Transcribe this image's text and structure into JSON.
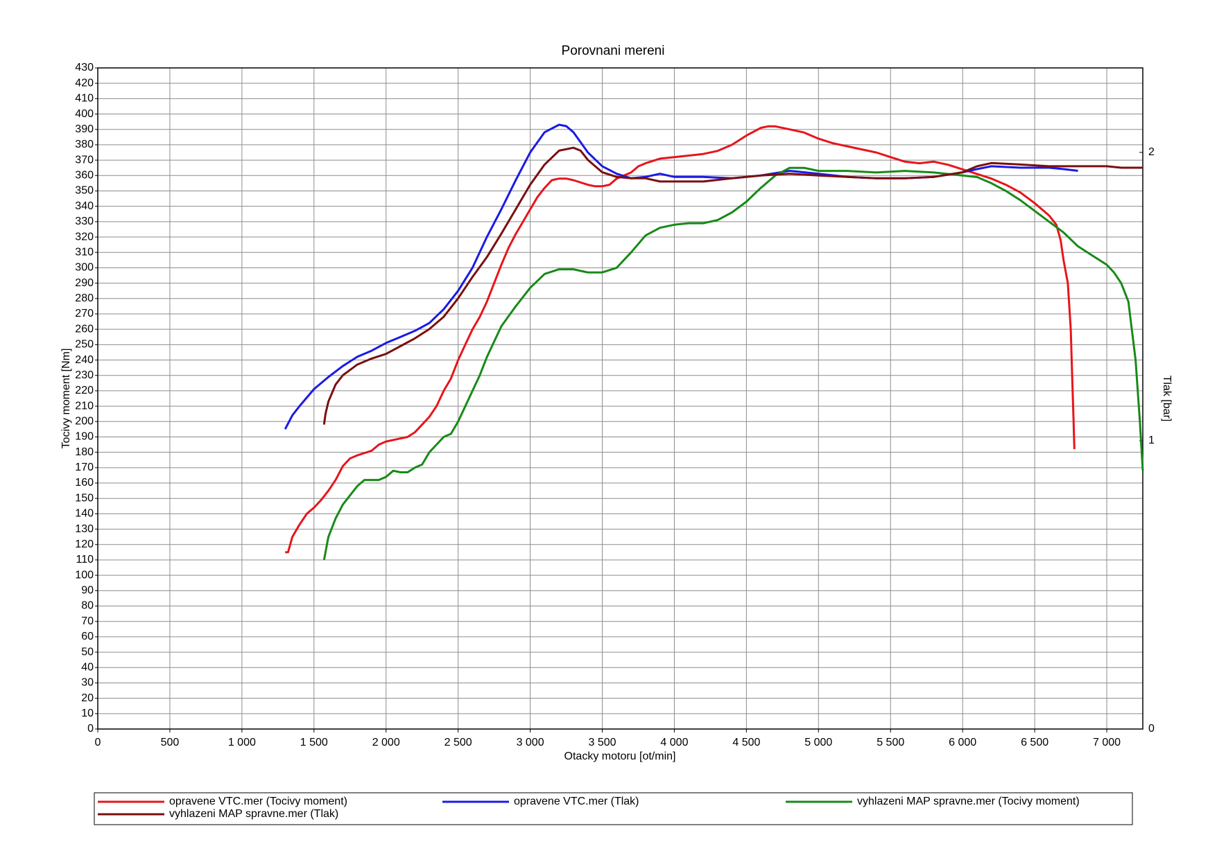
{
  "chart_data": {
    "type": "line",
    "title": "Porovnani mereni",
    "x_label": "Otacky motoru [ot/min]",
    "y_label": "Tocivy moment [Nm]",
    "y2_label": "Tlak [bar]",
    "xlim": [
      0,
      7250
    ],
    "ylim": [
      0,
      430
    ],
    "y2lim": [
      0,
      2.293
    ],
    "grid": true,
    "legend": "bottom",
    "xticks": [
      0,
      500,
      {
        "value": 1000,
        "label": "1 000"
      },
      {
        "value": 1500,
        "label": "1 500"
      },
      {
        "value": 2000,
        "label": "2 000"
      },
      {
        "value": 2500,
        "label": "2 500"
      },
      {
        "value": 3000,
        "label": "3 000"
      },
      {
        "value": 3500,
        "label": "3 500"
      },
      {
        "value": 4000,
        "label": "4 000"
      },
      {
        "value": 4500,
        "label": "4 500"
      },
      {
        "value": 5000,
        "label": "5 000"
      },
      {
        "value": 5500,
        "label": "5 500"
      },
      {
        "value": 6000,
        "label": "6 000"
      },
      {
        "value": 6500,
        "label": "6 500"
      },
      {
        "value": 7000,
        "label": "7 000"
      }
    ],
    "yticks": [
      0,
      10,
      20,
      30,
      40,
      50,
      60,
      70,
      80,
      90,
      100,
      110,
      120,
      130,
      140,
      150,
      160,
      170,
      180,
      190,
      200,
      210,
      220,
      230,
      240,
      250,
      260,
      270,
      280,
      290,
      300,
      310,
      320,
      330,
      340,
      350,
      360,
      370,
      380,
      390,
      400,
      410,
      420,
      430
    ],
    "y2ticks": [
      0,
      1,
      2
    ],
    "series": [
      {
        "name": "opravene VTC.mer  (Tocivy moment)",
        "color": "#e8141b",
        "x": [
          1300,
          1320,
          1350,
          1400,
          1450,
          1500,
          1550,
          1600,
          1650,
          1700,
          1750,
          1800,
          1900,
          1950,
          2000,
          2100,
          2150,
          2200,
          2250,
          2300,
          2350,
          2400,
          2450,
          2500,
          2550,
          2600,
          2650,
          2700,
          2750,
          2800,
          2850,
          2900,
          2950,
          3000,
          3050,
          3100,
          3150,
          3200,
          3250,
          3300,
          3400,
          3450,
          3500,
          3550,
          3600,
          3700,
          3750,
          3800,
          3900,
          4000,
          4100,
          4200,
          4300,
          4400,
          4500,
          4600,
          4650,
          4700,
          4800,
          4900,
          5000,
          5100,
          5200,
          5300,
          5400,
          5500,
          5600,
          5700,
          5800,
          5900,
          6000,
          6100,
          6200,
          6300,
          6400,
          6500,
          6600,
          6650,
          6680,
          6700,
          6730,
          6750,
          6760,
          6770,
          6775
        ],
        "values": [
          115,
          115,
          125,
          133,
          140,
          144,
          149,
          155,
          162,
          171,
          176,
          178,
          181,
          185,
          187,
          189,
          190,
          193,
          198,
          203,
          210,
          220,
          228,
          240,
          250,
          260,
          268,
          278,
          290,
          302,
          313,
          322,
          330,
          338,
          346,
          352,
          357,
          358,
          358,
          357,
          354,
          353,
          353,
          354,
          358,
          362,
          366,
          368,
          371,
          372,
          373,
          374,
          376,
          380,
          386,
          391,
          392,
          392,
          390,
          388,
          384,
          381,
          379,
          377,
          375,
          372,
          369,
          368,
          369,
          367,
          364,
          361,
          358,
          354,
          349,
          342,
          334,
          328,
          318,
          305,
          290,
          260,
          230,
          200,
          182
        ]
      },
      {
        "name": "opravene VTC.mer  (Tlak)",
        "color": "#1a1ae6",
        "axis": "y2",
        "x": [
          1300,
          1350,
          1400,
          1500,
          1600,
          1700,
          1800,
          1900,
          2000,
          2100,
          2200,
          2300,
          2400,
          2500,
          2600,
          2700,
          2800,
          2900,
          3000,
          3100,
          3200,
          3250,
          3300,
          3400,
          3500,
          3600,
          3700,
          3800,
          3900,
          4000,
          4200,
          4400,
          4600,
          4800,
          5000,
          5200,
          5400,
          5600,
          5800,
          6000,
          6100,
          6200,
          6400,
          6600,
          6700,
          6800
        ],
        "values": [
          1.04,
          1.088,
          1.12,
          1.179,
          1.221,
          1.259,
          1.291,
          1.312,
          1.339,
          1.36,
          1.381,
          1.408,
          1.456,
          1.52,
          1.6,
          1.707,
          1.803,
          1.904,
          2.0,
          2.07,
          2.096,
          2.091,
          2.07,
          2.0,
          1.952,
          1.926,
          1.91,
          1.915,
          1.926,
          1.915,
          1.915,
          1.91,
          1.92,
          1.936,
          1.926,
          1.915,
          1.91,
          1.91,
          1.915,
          1.931,
          1.942,
          1.952,
          1.947,
          1.947,
          1.942,
          1.936
        ]
      },
      {
        "name": "vyhlazeni MAP spravne.mer  (Tocivy moment)",
        "color": "#178a17",
        "x": [
          1570,
          1580,
          1600,
          1650,
          1700,
          1750,
          1800,
          1850,
          1900,
          1950,
          2000,
          2050,
          2100,
          2150,
          2200,
          2250,
          2300,
          2350,
          2400,
          2450,
          2500,
          2550,
          2600,
          2650,
          2700,
          2750,
          2800,
          2900,
          3000,
          3100,
          3200,
          3300,
          3400,
          3500,
          3600,
          3700,
          3800,
          3900,
          4000,
          4100,
          4200,
          4300,
          4400,
          4500,
          4600,
          4700,
          4800,
          4900,
          5000,
          5200,
          5400,
          5600,
          5800,
          6000,
          6100,
          6200,
          6300,
          6400,
          6500,
          6600,
          6700,
          6800,
          6900,
          7000,
          7050,
          7100,
          7150,
          7200,
          7230,
          7250
        ],
        "values": [
          110,
          115,
          125,
          137,
          146,
          152,
          158,
          162,
          162,
          162,
          164,
          168,
          167,
          167,
          170,
          172,
          180,
          185,
          190,
          192,
          200,
          210,
          220,
          230,
          242,
          252,
          262,
          275,
          287,
          296,
          299,
          299,
          297,
          297,
          300,
          310,
          321,
          326,
          328,
          329,
          329,
          331,
          336,
          343,
          352,
          360,
          365,
          365,
          363,
          363,
          362,
          363,
          362,
          360,
          359,
          355,
          350,
          344,
          337,
          330,
          323,
          314,
          308,
          302,
          297,
          290,
          278,
          240,
          200,
          168
        ]
      },
      {
        "name": "vyhlazeni MAP spravne.mer  (Tlak)",
        "color": "#7a0f0f",
        "axis": "y2",
        "x": [
          1570,
          1580,
          1600,
          1650,
          1700,
          1800,
          1900,
          2000,
          2100,
          2200,
          2300,
          2400,
          2500,
          2600,
          2700,
          2800,
          2900,
          3000,
          3100,
          3200,
          3300,
          3350,
          3400,
          3500,
          3600,
          3700,
          3800,
          3900,
          4000,
          4200,
          4400,
          4600,
          4800,
          5000,
          5200,
          5400,
          5600,
          5800,
          6000,
          6100,
          6200,
          6400,
          6600,
          6800,
          7000,
          7100,
          7250
        ],
        "values": [
          1.056,
          1.093,
          1.136,
          1.195,
          1.227,
          1.264,
          1.285,
          1.301,
          1.328,
          1.355,
          1.387,
          1.43,
          1.494,
          1.568,
          1.637,
          1.718,
          1.803,
          1.888,
          1.958,
          2.006,
          2.016,
          2.006,
          1.974,
          1.931,
          1.915,
          1.91,
          1.91,
          1.899,
          1.899,
          1.899,
          1.91,
          1.92,
          1.926,
          1.92,
          1.915,
          1.91,
          1.91,
          1.915,
          1.931,
          1.952,
          1.963,
          1.958,
          1.952,
          1.952,
          1.952,
          1.947,
          1.947
        ]
      }
    ]
  }
}
